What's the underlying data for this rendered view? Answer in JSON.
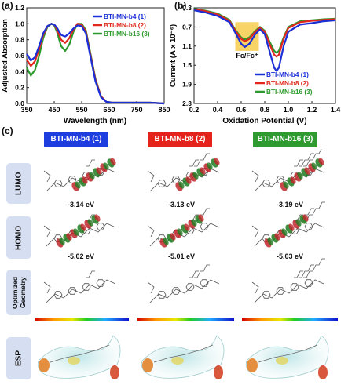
{
  "panel_a": {
    "label": "(a)",
    "chart_data": {
      "type": "line",
      "xlabel": "Wavelength (nm)",
      "ylabel": "Adjusted Absorption",
      "xlim": [
        350,
        850
      ],
      "ylim": [
        0.0,
        1.2
      ],
      "xticks": [
        "350",
        "450",
        "550",
        "650",
        "750",
        "850"
      ],
      "yticks": [
        "0.0",
        "0.2",
        "0.4",
        "0.6",
        "0.8",
        "1.0",
        "1.2"
      ],
      "legend_position": "top-right",
      "colors": [
        "#1a2fd6",
        "#e0261d",
        "#2d9a2d"
      ],
      "series": [
        {
          "name": "BTI-MN-b4 (1)",
          "x": [
            350,
            365,
            380,
            395,
            410,
            425,
            440,
            450,
            460,
            475,
            490,
            505,
            520,
            535,
            550,
            565,
            580,
            600,
            620,
            640,
            660,
            680,
            700,
            720,
            760,
            800,
            850
          ],
          "y": [
            0.62,
            0.54,
            0.58,
            0.72,
            0.88,
            0.97,
            1.0,
            0.99,
            0.95,
            0.86,
            0.84,
            0.88,
            0.94,
            0.98,
            0.97,
            0.88,
            0.62,
            0.28,
            0.08,
            0.02,
            0.01,
            0.01,
            0.01,
            0.01,
            0.01,
            0.01,
            0.0
          ]
        },
        {
          "name": "BTI-MN-b8 (2)",
          "x": [
            350,
            365,
            380,
            395,
            410,
            425,
            440,
            450,
            460,
            475,
            490,
            505,
            520,
            535,
            550,
            565,
            580,
            600,
            620,
            640,
            660,
            680,
            700,
            720,
            760,
            800,
            850
          ],
          "y": [
            0.55,
            0.47,
            0.53,
            0.68,
            0.86,
            0.97,
            1.0,
            0.99,
            0.93,
            0.8,
            0.76,
            0.82,
            0.93,
            1.0,
            0.99,
            0.9,
            0.64,
            0.3,
            0.09,
            0.02,
            0.01,
            0.01,
            0.01,
            0.01,
            0.01,
            0.01,
            0.0
          ]
        },
        {
          "name": "BTI-MN-b16 (3)",
          "x": [
            350,
            365,
            380,
            395,
            410,
            425,
            440,
            450,
            460,
            475,
            490,
            505,
            520,
            535,
            550,
            565,
            580,
            600,
            620,
            640,
            660,
            680,
            700,
            720,
            760,
            800,
            850
          ],
          "y": [
            0.45,
            0.35,
            0.42,
            0.6,
            0.82,
            0.96,
            1.0,
            0.98,
            0.9,
            0.72,
            0.66,
            0.74,
            0.9,
            1.0,
            1.0,
            0.92,
            0.66,
            0.31,
            0.09,
            0.02,
            0.01,
            0.01,
            0.01,
            0.01,
            0.01,
            0.01,
            0.0
          ]
        }
      ]
    }
  },
  "panel_b": {
    "label": "(b)",
    "chart_data": {
      "type": "line",
      "xlabel": "Oxidation Potential (V)",
      "ylabel": "Current (A x 10⁻⁶)",
      "xlim": [
        0.2,
        1.4
      ],
      "ylim": [
        0.3,
        2.3
      ],
      "y_inverted": true,
      "xticks": [
        "0.2",
        "0.4",
        "0.6",
        "0.8",
        "1.0",
        "1.2",
        "1.4"
      ],
      "yticks": [
        "0.3",
        "0.7",
        "1.1",
        "1.5",
        "1.9",
        "2.3"
      ],
      "legend_position": "bottom-right",
      "annotation": "Fc/Fc⁺",
      "annotation_span": [
        0.55,
        0.75
      ],
      "colors": [
        "#1a2fd6",
        "#e0261d",
        "#2d9a2d"
      ],
      "series": [
        {
          "name": "BTI-MN-b4 (1)",
          "x": [
            0.2,
            0.3,
            0.4,
            0.5,
            0.55,
            0.6,
            0.63,
            0.67,
            0.72,
            0.76,
            0.8,
            0.84,
            0.88,
            0.9,
            0.92,
            0.96,
            1.0,
            1.1,
            1.2,
            1.3,
            1.4
          ],
          "y": [
            0.35,
            0.4,
            0.47,
            0.6,
            0.82,
            1.05,
            1.12,
            1.05,
            0.85,
            0.75,
            0.85,
            1.2,
            1.55,
            1.62,
            1.55,
            1.1,
            0.8,
            0.65,
            0.62,
            0.58,
            0.56
          ]
        },
        {
          "name": "BTI-MN-b8 (2)",
          "x": [
            0.2,
            0.3,
            0.4,
            0.5,
            0.55,
            0.6,
            0.63,
            0.67,
            0.72,
            0.76,
            0.8,
            0.84,
            0.88,
            0.9,
            0.92,
            0.96,
            1.0,
            1.1,
            1.2,
            1.3,
            1.4
          ],
          "y": [
            0.33,
            0.37,
            0.44,
            0.57,
            0.78,
            0.95,
            1.0,
            0.95,
            0.8,
            0.72,
            0.8,
            1.05,
            1.28,
            1.32,
            1.28,
            0.95,
            0.72,
            0.6,
            0.57,
            0.55,
            0.54
          ]
        },
        {
          "name": "BTI-MN-b16 (3)",
          "x": [
            0.2,
            0.3,
            0.4,
            0.5,
            0.55,
            0.6,
            0.63,
            0.67,
            0.72,
            0.76,
            0.8,
            0.84,
            0.88,
            0.9,
            0.92,
            0.96,
            1.0,
            1.1,
            1.2,
            1.3,
            1.4
          ],
          "y": [
            0.32,
            0.36,
            0.42,
            0.55,
            0.76,
            0.92,
            0.96,
            0.92,
            0.78,
            0.7,
            0.78,
            1.0,
            1.2,
            1.24,
            1.2,
            0.92,
            0.7,
            0.58,
            0.56,
            0.54,
            0.53
          ]
        }
      ]
    }
  },
  "panel_c": {
    "label": "(c)",
    "molecules": [
      {
        "name": "BTI-MN-b4 (1)",
        "color": "#1f3ee0"
      },
      {
        "name": "BTI-MN-b8 (2)",
        "color": "#e3231c"
      },
      {
        "name": "BTI-MN-b16 (3)",
        "color": "#2f9a2f"
      }
    ],
    "rows": [
      "LUMO",
      "HOMO",
      "Optimized Geometry",
      "ESP"
    ],
    "lumo_energies": [
      "-3.14 eV",
      "-3.13 eV",
      "-3.19 eV"
    ],
    "homo_energies": [
      "-5.02 eV",
      "-5.01 eV",
      "-5.03 eV"
    ]
  }
}
